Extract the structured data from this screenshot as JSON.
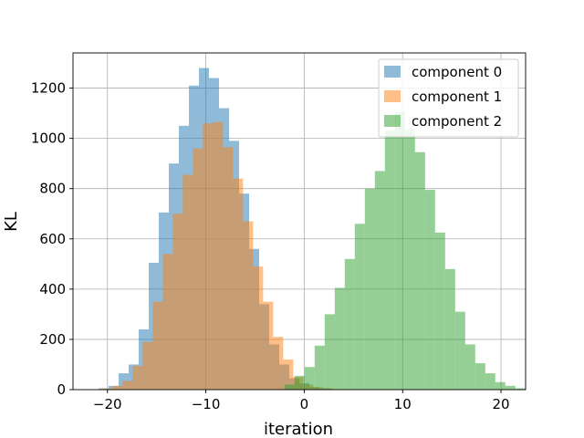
{
  "chart_data": {
    "type": "bar",
    "xlabel": "iteration",
    "ylabel": "KL",
    "xlim": [
      -23.5,
      22.5
    ],
    "ylim": [
      0,
      1340
    ],
    "grid": true,
    "legend_position": "top-right",
    "x_ticks": [
      -20,
      -10,
      0,
      10,
      20
    ],
    "y_ticks": [
      0,
      200,
      400,
      600,
      800,
      1000,
      1200
    ],
    "series": [
      {
        "name": "component 0",
        "color": "#1f77b4",
        "alpha": 0.5,
        "bin_start": -20.9,
        "bin_width": 1.02,
        "counts": [
          5,
          15,
          65,
          100,
          240,
          505,
          705,
          900,
          1050,
          1210,
          1280,
          1240,
          1120,
          990,
          780,
          560,
          340,
          180,
          100,
          45,
          25,
          10,
          5
        ]
      },
      {
        "name": "component 1",
        "color": "#ff7f0e",
        "alpha": 0.5,
        "bin_start": -20.5,
        "bin_width": 1.02,
        "counts": [
          5,
          15,
          35,
          95,
          190,
          350,
          540,
          700,
          855,
          960,
          1060,
          1065,
          965,
          840,
          670,
          490,
          350,
          210,
          120,
          50,
          20,
          10,
          5
        ]
      },
      {
        "name": "component 2",
        "color": "#2ca02c",
        "alpha": 0.5,
        "bin_start": -2.0,
        "bin_width": 1.02,
        "counts": [
          20,
          55,
          90,
          175,
          300,
          405,
          520,
          660,
          800,
          870,
          1030,
          1105,
          1035,
          945,
          795,
          625,
          480,
          310,
          180,
          105,
          65,
          30,
          15,
          5
        ]
      }
    ]
  }
}
